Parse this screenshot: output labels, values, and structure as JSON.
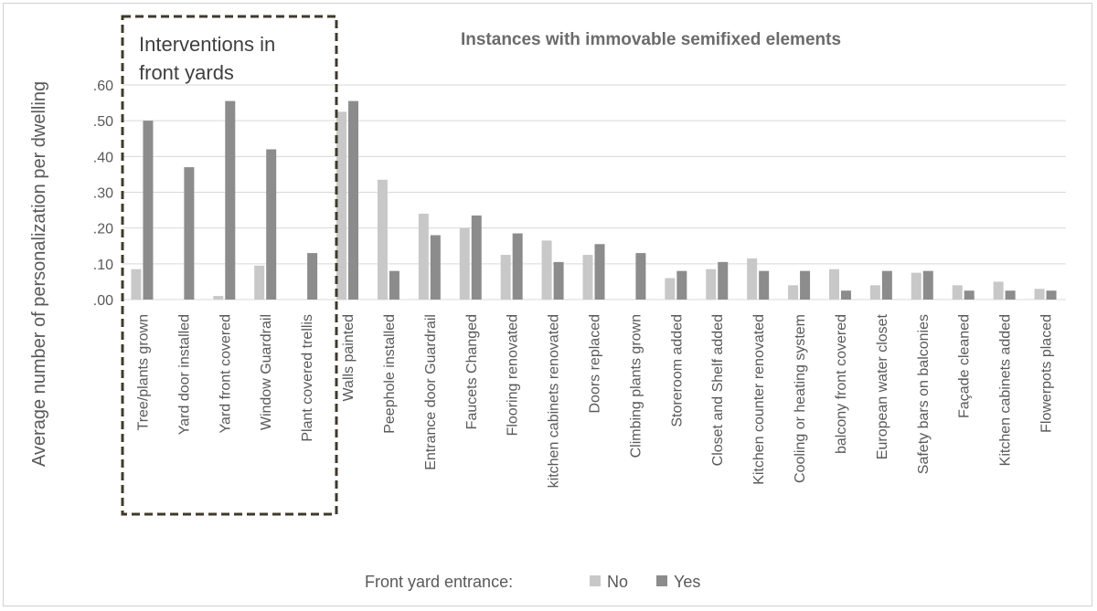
{
  "chart_data": {
    "type": "bar",
    "title": "Instances with immovable semifixed elements",
    "ylabel": "Average number of personalization per dwelling",
    "xlabel": "",
    "ylim": [
      0,
      0.6
    ],
    "yticks": [
      ".00",
      ".10",
      ".20",
      ".30",
      ".40",
      ".50",
      ".60"
    ],
    "grid": true,
    "highlight_box_label": [
      "Interventions in",
      "front yards"
    ],
    "legend": {
      "title": "Front yard entrance:",
      "position": "bottom"
    },
    "categories": [
      "Tree/plants grown",
      "Yard door installed",
      "Yard front covered",
      "Window Guardrail",
      "Plant covered trellis",
      "Walls painted",
      "Peephole installed",
      "Entrance door Guardrail",
      "Faucets Changed",
      "Flooring renovated",
      "kitchen cabinets renovated",
      "Doors replaced",
      "Climbing plants grown",
      "Storeroom added",
      "Closet and Shelf added",
      "Kitchen counter renovated",
      "Cooling or heating system",
      "balcony front covered",
      "European water closet",
      "Safety bars  on balconies",
      "Façade cleaned",
      "Kitchen cabinets added",
      "Flowerpots placed"
    ],
    "series": [
      {
        "name": "No",
        "color": "#c8c8c8",
        "values": [
          0.085,
          0,
          0.01,
          0.095,
          0,
          0.525,
          0.335,
          0.24,
          0.2,
          0.125,
          0.165,
          0.125,
          0,
          0.06,
          0.085,
          0.115,
          0.04,
          0.085,
          0.04,
          0.075,
          0.04,
          0.05,
          0.03
        ]
      },
      {
        "name": "Yes",
        "color": "#8c8c8c",
        "values": [
          0.5,
          0.37,
          0.555,
          0.42,
          0.13,
          0.555,
          0.08,
          0.18,
          0.235,
          0.185,
          0.105,
          0.155,
          0.13,
          0.08,
          0.105,
          0.08,
          0.08,
          0.025,
          0.08,
          0.08,
          0.025,
          0.025,
          0.025
        ]
      }
    ]
  }
}
